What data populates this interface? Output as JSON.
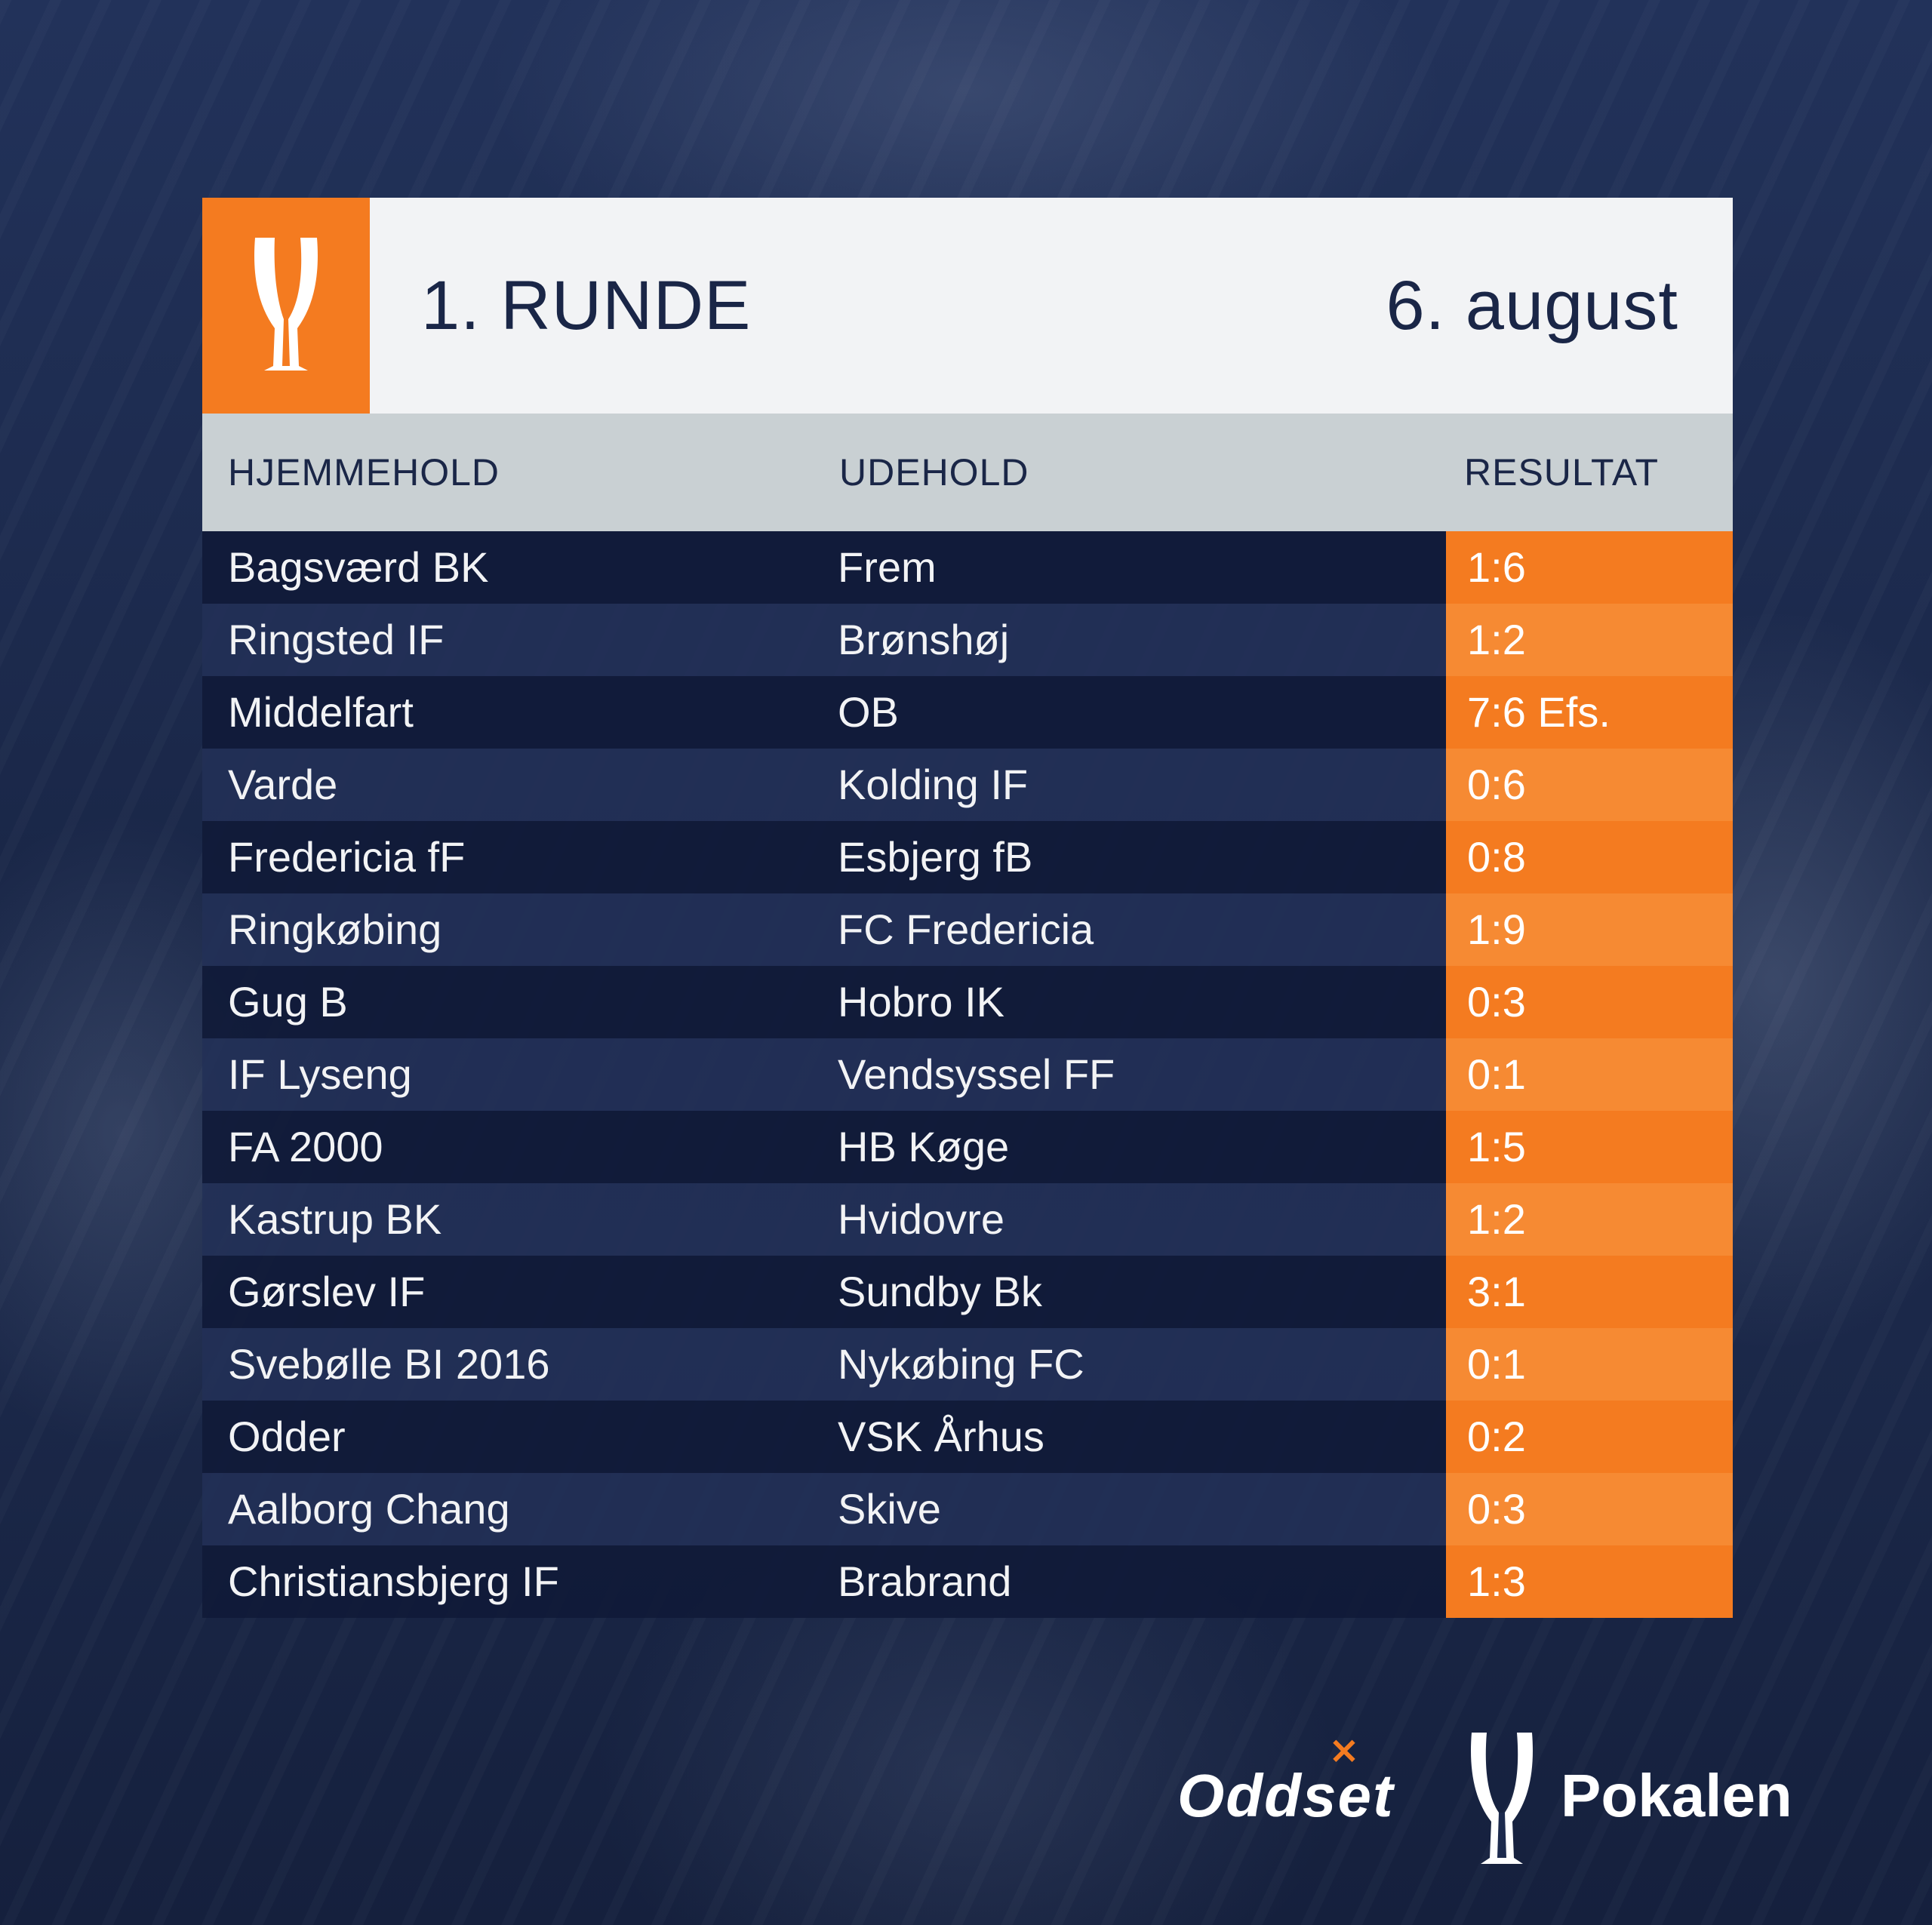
{
  "header": {
    "title": "1. RUNDE",
    "date": "6. august"
  },
  "columns": {
    "home": "HJEMMEHOLD",
    "away": "UDEHOLD",
    "result": "RESULTAT"
  },
  "matches": [
    {
      "home": "Bagsværd BK",
      "away": "Frem",
      "result": "1:6"
    },
    {
      "home": "Ringsted IF",
      "away": "Brønshøj",
      "result": "1:2"
    },
    {
      "home": "Middelfart",
      "away": "OB",
      "result": "7:6 Efs."
    },
    {
      "home": "Varde",
      "away": "Kolding IF",
      "result": "0:6"
    },
    {
      "home": "Fredericia fF",
      "away": "Esbjerg fB",
      "result": "0:8"
    },
    {
      "home": "Ringkøbing",
      "away": "FC Fredericia",
      "result": "1:9"
    },
    {
      "home": "Gug B",
      "away": "Hobro IK",
      "result": "0:3"
    },
    {
      "home": "IF Lyseng",
      "away": "Vendsyssel FF",
      "result": "0:1"
    },
    {
      "home": "FA 2000",
      "away": "HB Køge",
      "result": "1:5"
    },
    {
      "home": "Kastrup BK",
      "away": "Hvidovre",
      "result": "1:2"
    },
    {
      "home": "Gørslev IF",
      "away": "Sundby Bk",
      "result": "3:1"
    },
    {
      "home": "Svebølle BI 2016",
      "away": "Nykøbing FC",
      "result": "0:1"
    },
    {
      "home": "Odder",
      "away": "VSK Århus",
      "result": "0:2"
    },
    {
      "home": "Aalborg Chang",
      "away": "Skive",
      "result": "0:3"
    },
    {
      "home": "Christiansbjerg IF",
      "away": "Brabrand",
      "result": "1:3"
    }
  ],
  "footer": {
    "sponsor": "Oddset",
    "sponsor_mark": "×",
    "competition": "Pokalen"
  },
  "colors": {
    "accent": "#f47b20",
    "navy": "#1a2647",
    "header_bg": "#f2f3f5",
    "column_header_bg": "#c9d0d3"
  },
  "icons": {
    "header_logo": "cup-trophy-icon",
    "footer_logo": "cup-trophy-icon"
  }
}
